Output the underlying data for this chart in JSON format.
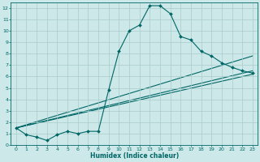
{
  "xlabel": "Humidex (Indice chaleur)",
  "background_color": "#cce8e8",
  "grid_color": "#aacccc",
  "line_color": "#006666",
  "xlim": [
    -0.5,
    23.5
  ],
  "ylim": [
    0,
    12.5
  ],
  "x_ticks": [
    0,
    1,
    2,
    3,
    4,
    5,
    6,
    7,
    8,
    9,
    10,
    11,
    12,
    13,
    14,
    15,
    16,
    17,
    18,
    19,
    20,
    21,
    22,
    23
  ],
  "y_ticks": [
    0,
    1,
    2,
    3,
    4,
    5,
    6,
    7,
    8,
    9,
    10,
    11,
    12
  ],
  "main_series": {
    "x": [
      0,
      1,
      2,
      3,
      4,
      5,
      6,
      7,
      8,
      9,
      10,
      11,
      12,
      13,
      14,
      15,
      16,
      17,
      18,
      19,
      20,
      21,
      22,
      23
    ],
    "y": [
      1.5,
      0.9,
      0.7,
      0.4,
      0.9,
      1.2,
      1.0,
      1.2,
      1.2,
      4.8,
      8.2,
      10.0,
      10.5,
      12.2,
      12.2,
      11.5,
      9.5,
      9.2,
      8.2,
      7.8,
      7.2,
      6.8,
      6.5,
      6.3
    ],
    "markersize": 2.0,
    "linewidth": 0.8
  },
  "straight_lines": [
    {
      "x": [
        0,
        23
      ],
      "y": [
        1.5,
        7.8
      ]
    },
    {
      "x": [
        0,
        23
      ],
      "y": [
        1.5,
        6.5
      ]
    },
    {
      "x": [
        0,
        23
      ],
      "y": [
        1.5,
        6.2
      ]
    }
  ],
  "linewidth": 0.8
}
